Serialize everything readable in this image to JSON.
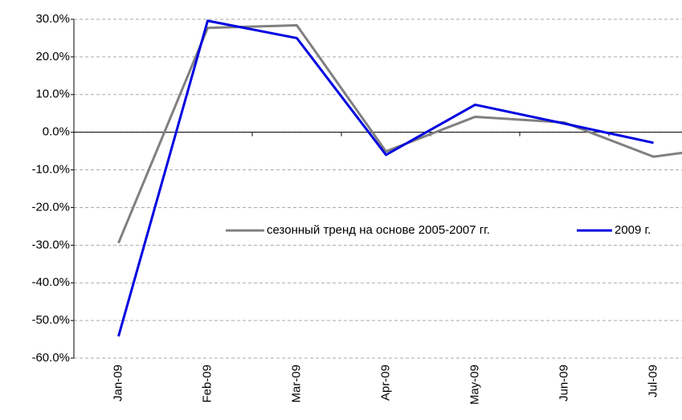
{
  "chart_data": {
    "type": "line",
    "categories": [
      "Jan-09",
      "Feb-09",
      "Mar-09",
      "Apr-09",
      "May-09",
      "Jun-09",
      "Jul-09",
      null
    ],
    "series": [
      {
        "name": "сезонный тренд на основе 2005-2007 гг.",
        "color": "#808080",
        "values": [
          -29.4,
          27.7,
          28.4,
          -5.1,
          4.1,
          2.6,
          -6.5,
          -3.3
        ]
      },
      {
        "name": "2009 г.",
        "color": "#0000e0",
        "values": [
          -54.2,
          29.6,
          25.0,
          -6.0,
          7.3,
          2.3,
          -2.8,
          null
        ]
      }
    ],
    "ylim": [
      -60,
      30
    ],
    "yticks": [
      {
        "value": -60,
        "label": "-60.0%"
      },
      {
        "value": -50,
        "label": "-50.0%"
      },
      {
        "value": -40,
        "label": "-40.0%"
      },
      {
        "value": -30,
        "label": "-30.0%"
      },
      {
        "value": -20,
        "label": "-20.0%"
      },
      {
        "value": -10,
        "label": "-10.0%"
      },
      {
        "value": 0,
        "label": "0.0%"
      },
      {
        "value": 10,
        "label": "10.0%"
      },
      {
        "value": 20,
        "label": "20.0%"
      },
      {
        "value": 30,
        "label": "30.0%"
      }
    ],
    "grid": true
  }
}
